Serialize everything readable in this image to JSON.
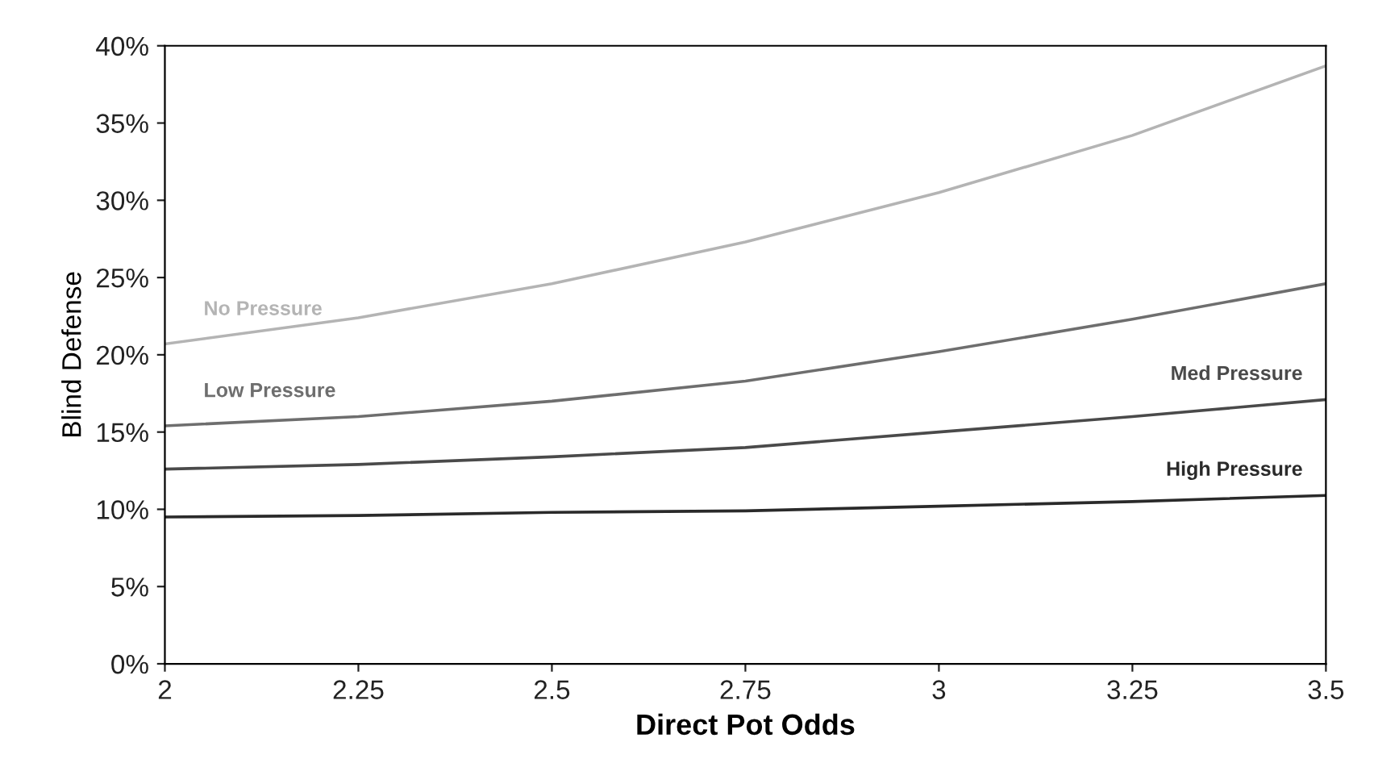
{
  "chart_data": {
    "type": "line",
    "xlabel": "Direct Pot Odds",
    "ylabel": "Blind Defense",
    "x": [
      2,
      2.25,
      2.5,
      2.75,
      3,
      3.25,
      3.5
    ],
    "series": [
      {
        "name": "No Pressure",
        "color": "#b4b4b4",
        "values": [
          20.7,
          22.4,
          24.6,
          27.3,
          30.5,
          34.2,
          38.7
        ]
      },
      {
        "name": "Low Pressure",
        "color": "#6e6e6e",
        "values": [
          15.4,
          16.0,
          17.0,
          18.3,
          20.2,
          22.3,
          24.6
        ]
      },
      {
        "name": "Med Pressure",
        "color": "#4a4a4a",
        "values": [
          12.6,
          12.9,
          13.4,
          14.0,
          15.0,
          16.0,
          17.1
        ]
      },
      {
        "name": "High Pressure",
        "color": "#2a2a2a",
        "values": [
          9.5,
          9.6,
          9.8,
          9.9,
          10.2,
          10.5,
          10.9
        ]
      }
    ],
    "xlim": [
      2,
      3.5
    ],
    "xticks": [
      2,
      2.25,
      2.5,
      2.75,
      3,
      3.25,
      3.5
    ],
    "ylim": [
      0,
      40
    ],
    "yticks": [
      {
        "value": 0,
        "label": "0%"
      },
      {
        "value": 5,
        "label": "5%"
      },
      {
        "value": 10,
        "label": "10%"
      },
      {
        "value": 15,
        "label": "15%"
      },
      {
        "value": 20,
        "label": "20%"
      },
      {
        "value": 25,
        "label": "25%"
      },
      {
        "value": 30,
        "label": "30%"
      },
      {
        "value": 35,
        "label": "35%"
      },
      {
        "value": 40,
        "label": "40%"
      }
    ],
    "grid": false,
    "legend": false,
    "marker": "none",
    "line_style": "solid"
  }
}
